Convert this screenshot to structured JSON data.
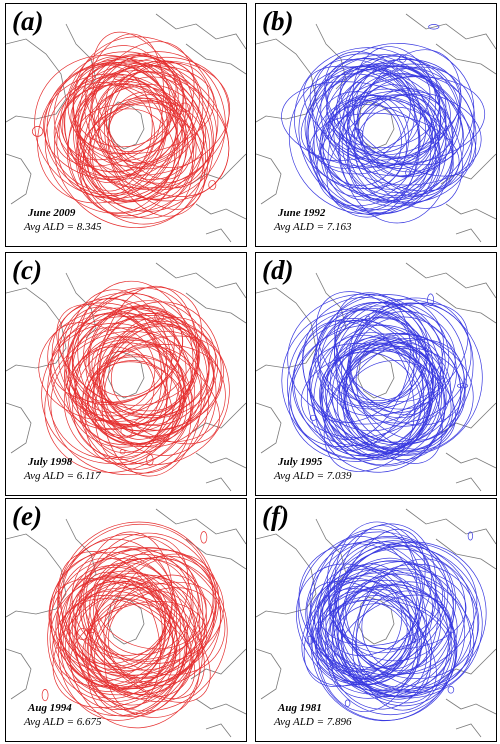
{
  "panels": [
    {
      "label": "(a)",
      "date": "June 2009",
      "ald": "Avg ALD = 8.345",
      "color": "#e53030",
      "seed": 11
    },
    {
      "label": "(b)",
      "date": "June 1992",
      "ald": "Avg ALD = 7.163",
      "color": "#3a3ae0",
      "seed": 23
    },
    {
      "label": "(c)",
      "date": "July 1998",
      "ald": "Avg ALD = 6.117",
      "color": "#e53030",
      "seed": 37
    },
    {
      "label": "(d)",
      "date": "July 1995",
      "ald": "Avg ALD = 7.039",
      "color": "#3a3ae0",
      "seed": 41
    },
    {
      "label": "(e)",
      "date": "Aug 1994",
      "ald": "Avg ALD = 6.675",
      "color": "#e53030",
      "seed": 53
    },
    {
      "label": "(f)",
      "date": "Aug 1981",
      "ald": "Avg ALD = 7.896",
      "color": "#3a3ae0",
      "seed": 67
    }
  ],
  "coastline_color": "#7a7a7a"
}
